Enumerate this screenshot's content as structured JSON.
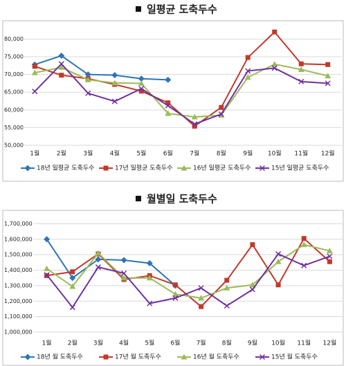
{
  "chart_data": [
    {
      "type": "line",
      "title": "일평균 도축두수",
      "categories": [
        "1월",
        "2월",
        "3월",
        "4월",
        "5월",
        "6월",
        "7월",
        "8월",
        "9월",
        "10월",
        "11월",
        "12월"
      ],
      "ylim": [
        50000,
        84000
      ],
      "yticks": [
        {
          "value": 50000,
          "label": "50,000"
        },
        {
          "value": 55000,
          "label": "55,000"
        },
        {
          "value": 60000,
          "label": "60,000"
        },
        {
          "value": 65000,
          "label": "65,000"
        },
        {
          "value": 70000,
          "label": "70,000"
        },
        {
          "value": 75000,
          "label": "75,000"
        },
        {
          "value": 80000,
          "label": "80,000"
        }
      ],
      "grid": true,
      "legend": "bottom",
      "series": [
        {
          "name": "18년 일평균 도축두수",
          "color": "#2e75b6",
          "marker": "diamond",
          "values": [
            72800,
            75300,
            70000,
            69800,
            68800,
            68500,
            null,
            null,
            null,
            null,
            null,
            null
          ]
        },
        {
          "name": "17년 일평균 도축두수",
          "color": "#c0392b",
          "marker": "square",
          "values": [
            72300,
            69800,
            68800,
            67200,
            65300,
            62000,
            55400,
            60700,
            74800,
            82000,
            73000,
            72800
          ]
        },
        {
          "name": "16년 일평균 도축두수",
          "color": "#9bbb59",
          "marker": "triangle",
          "values": [
            70500,
            72000,
            68500,
            67600,
            67500,
            59000,
            58000,
            58500,
            69200,
            72900,
            71400,
            69600
          ]
        },
        {
          "name": "15년 일평균 도축두수",
          "color": "#7030a0",
          "marker": "x",
          "values": [
            65200,
            73000,
            64700,
            62400,
            66000,
            61200,
            56000,
            58800,
            71000,
            71800,
            68000,
            67500
          ]
        }
      ]
    },
    {
      "type": "line",
      "title": "월별일 도축두수",
      "categories": [
        "1월",
        "2월",
        "3월",
        "4월",
        "5월",
        "6월",
        "7월",
        "8월",
        "9월",
        "10월",
        "11월",
        "12월"
      ],
      "ylim": [
        1000000,
        1760000
      ],
      "yticks": [
        {
          "value": 1000000,
          "label": "1,000,000"
        },
        {
          "value": 1100000,
          "label": "1,100,000"
        },
        {
          "value": 1200000,
          "label": "1,200,000"
        },
        {
          "value": 1300000,
          "label": "1,300,000"
        },
        {
          "value": 1400000,
          "label": "1,400,000"
        },
        {
          "value": 1500000,
          "label": "1,500,000"
        },
        {
          "value": 1600000,
          "label": "1,600,000"
        },
        {
          "value": 1700000,
          "label": "1,700,000"
        }
      ],
      "grid": true,
      "legend": "bottom",
      "series": [
        {
          "name": "18년 월 도축두수",
          "color": "#2e75b6",
          "marker": "diamond",
          "values": [
            1600000,
            1350000,
            1470000,
            1465000,
            1445000,
            1300000,
            null,
            null,
            null,
            null,
            null,
            null
          ]
        },
        {
          "name": "17년 월 도축두수",
          "color": "#c0392b",
          "marker": "square",
          "values": [
            1365000,
            1390000,
            1505000,
            1340000,
            1365000,
            1305000,
            1165000,
            1335000,
            1565000,
            1305000,
            1605000,
            1455000
          ]
        },
        {
          "name": "16년 월 도축두수",
          "color": "#9bbb59",
          "marker": "triangle",
          "values": [
            1410000,
            1295000,
            1510000,
            1350000,
            1350000,
            1245000,
            1220000,
            1285000,
            1305000,
            1455000,
            1565000,
            1525000
          ]
        },
        {
          "name": "15년 월 도축두수",
          "color": "#7030a0",
          "marker": "x",
          "values": [
            1370000,
            1160000,
            1420000,
            1380000,
            1185000,
            1220000,
            1285000,
            1170000,
            1275000,
            1505000,
            1430000,
            1490000
          ]
        }
      ]
    }
  ]
}
